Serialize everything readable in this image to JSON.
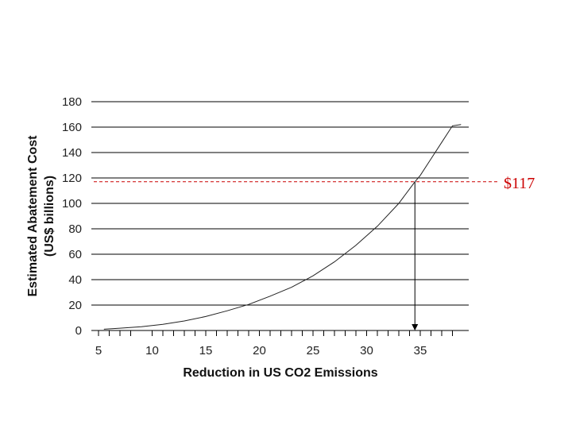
{
  "chart_data": {
    "type": "line",
    "title": "",
    "xlabel": "Reduction in US CO2 Emissions",
    "ylabel_line1": "Estimated Abatement Cost",
    "ylabel_line2": "(US$ billions)",
    "xlim": [
      5,
      40
    ],
    "ylim": [
      0,
      180
    ],
    "x_ticks": [
      5,
      10,
      15,
      20,
      25,
      30,
      35
    ],
    "x_tick_labels": [
      "5",
      "10",
      "15",
      "20",
      "25",
      "30",
      "35"
    ],
    "x_minor_ticks": [
      6,
      7,
      8,
      11,
      12,
      13,
      14,
      16,
      17,
      18,
      19,
      21,
      22,
      23,
      24,
      26,
      27,
      28,
      29,
      31,
      32,
      33,
      34,
      36,
      37,
      38
    ],
    "y_ticks": [
      0,
      20,
      40,
      60,
      80,
      100,
      120,
      140,
      160,
      180
    ],
    "y_tick_labels": [
      "0",
      "20",
      "40",
      "60",
      "80",
      "100",
      "120",
      "140",
      "160",
      "180"
    ],
    "grid": "horizontal",
    "series": [
      {
        "name": "Estimated Abatement Cost",
        "x": [
          5.5,
          7,
          9,
          11,
          13,
          15,
          17,
          19,
          21,
          23,
          25,
          27,
          29,
          31,
          33,
          34.5,
          35,
          36,
          37,
          38,
          38.8
        ],
        "y": [
          1,
          1.8,
          3,
          4.8,
          7.5,
          11,
          15.5,
          20.5,
          27,
          34,
          43,
          54,
          67,
          82,
          100,
          117,
          122,
          135,
          148,
          161,
          162
        ]
      }
    ],
    "annotation": {
      "label": "$117",
      "value": 117,
      "x": 34.5,
      "color": "#cc0000"
    }
  }
}
